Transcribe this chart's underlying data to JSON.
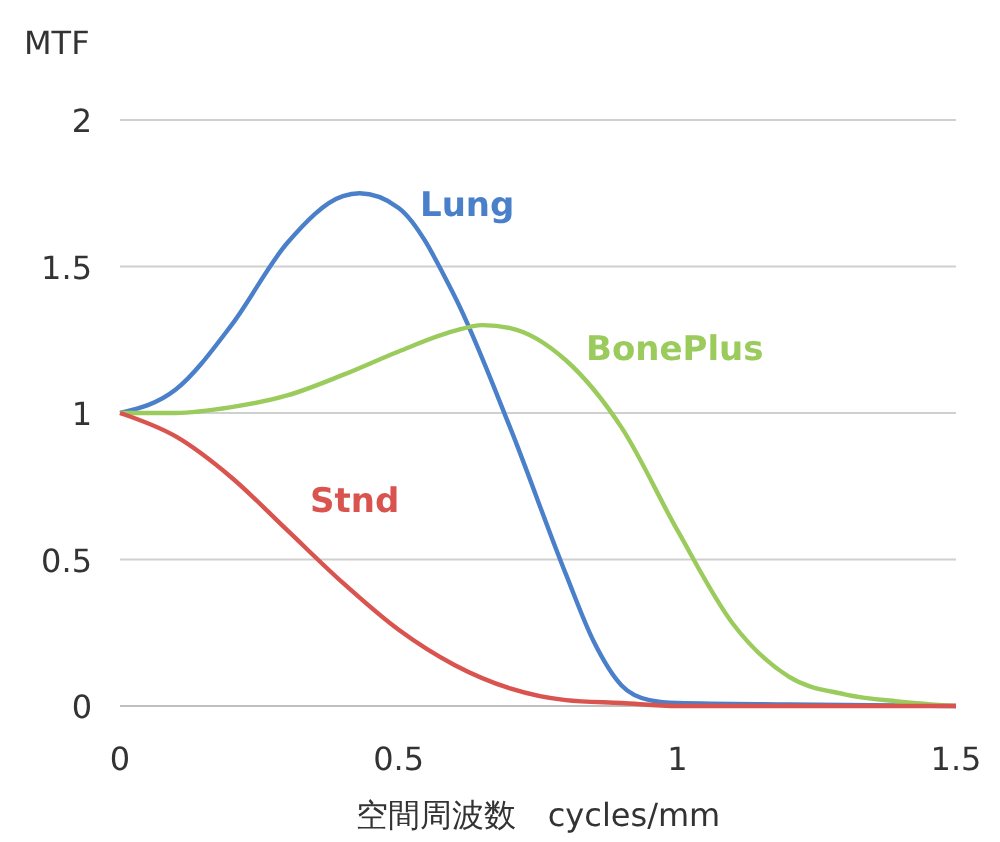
{
  "chart_data": {
    "type": "line",
    "xlabel": "空間周波数　cycles/mm",
    "ylabel": "MTF",
    "xlim": [
      0,
      1.5
    ],
    "ylim": [
      0,
      2
    ],
    "xticks": [
      0,
      0.5,
      1,
      1.5
    ],
    "yticks": [
      0,
      0.5,
      1,
      1.5,
      2
    ],
    "grid": "y",
    "marker": "none",
    "line_style": "solid",
    "series": [
      {
        "name": "Lung",
        "color": "#4a7fc9",
        "x": [
          0,
          0.1,
          0.2,
          0.3,
          0.4,
          0.43,
          0.5,
          0.6,
          0.7,
          0.8,
          0.85,
          0.9,
          0.95,
          1,
          1.2,
          1.5
        ],
        "values": [
          1,
          1.08,
          1.3,
          1.58,
          1.74,
          1.75,
          1.7,
          1.4,
          0.95,
          0.45,
          0.22,
          0.07,
          0.02,
          0.01,
          0.005,
          0
        ]
      },
      {
        "name": "BonePlus",
        "color": "#9acb5c",
        "x": [
          0,
          0.1,
          0.2,
          0.3,
          0.4,
          0.5,
          0.6,
          0.65,
          0.7,
          0.8,
          0.9,
          1,
          1.1,
          1.2,
          1.3,
          1.4,
          1.5
        ],
        "values": [
          1,
          1,
          1.02,
          1.06,
          1.13,
          1.21,
          1.28,
          1.3,
          1.29,
          1.18,
          0.95,
          0.6,
          0.28,
          0.1,
          0.04,
          0.015,
          0
        ]
      },
      {
        "name": "Stnd",
        "color": "#d9534f",
        "x": [
          0,
          0.1,
          0.2,
          0.3,
          0.4,
          0.5,
          0.6,
          0.7,
          0.8,
          0.9,
          1,
          1.5
        ],
        "values": [
          1,
          0.92,
          0.78,
          0.6,
          0.42,
          0.26,
          0.14,
          0.06,
          0.02,
          0.01,
          0,
          0
        ]
      }
    ]
  }
}
